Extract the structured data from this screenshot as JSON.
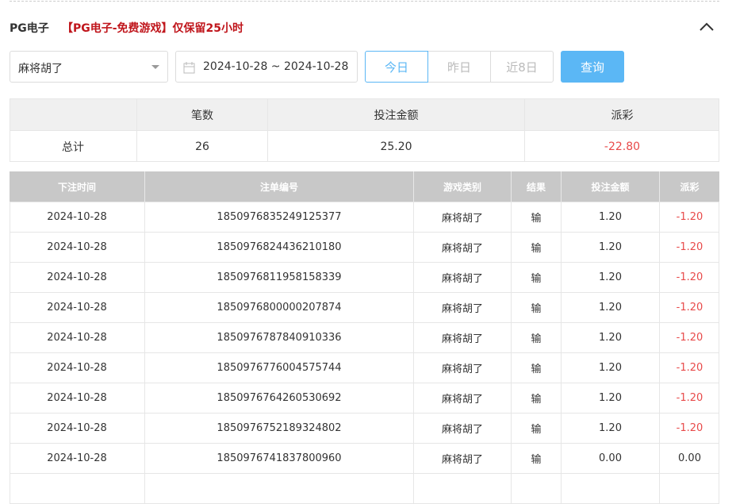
{
  "header": {
    "title": "PG电子",
    "notice": "【PG电子-免费游戏】仅保留25小时"
  },
  "filters": {
    "game": "麻将胡了",
    "date_range": "2024-10-28 ~ 2024-10-28",
    "quick_buttons": [
      "今日",
      "昨日",
      "近8日"
    ],
    "query_button": "查询"
  },
  "summary": {
    "columns": [
      "笔数",
      "投注金额",
      "派彩"
    ],
    "row_label": "总计",
    "values": [
      "26",
      "25.20",
      "-22.80"
    ]
  },
  "table": {
    "columns": [
      "下注时间",
      "注单编号",
      "游戏类别",
      "结果",
      "投注金额",
      "派彩"
    ],
    "rows": [
      [
        "2024-10-28",
        "1850976835249125377",
        "麻将胡了",
        "输",
        "1.20",
        "-1.20"
      ],
      [
        "2024-10-28",
        "1850976824436210180",
        "麻将胡了",
        "输",
        "1.20",
        "-1.20"
      ],
      [
        "2024-10-28",
        "1850976811958158339",
        "麻将胡了",
        "输",
        "1.20",
        "-1.20"
      ],
      [
        "2024-10-28",
        "1850976800000207874",
        "麻将胡了",
        "输",
        "1.20",
        "-1.20"
      ],
      [
        "2024-10-28",
        "1850976787840910336",
        "麻将胡了",
        "输",
        "1.20",
        "-1.20"
      ],
      [
        "2024-10-28",
        "1850976776004575744",
        "麻将胡了",
        "输",
        "1.20",
        "-1.20"
      ],
      [
        "2024-10-28",
        "1850976764260530692",
        "麻将胡了",
        "输",
        "1.20",
        "-1.20"
      ],
      [
        "2024-10-28",
        "1850976752189324802",
        "麻将胡了",
        "输",
        "1.20",
        "-1.20"
      ],
      [
        "2024-10-28",
        "1850976741837800960",
        "麻将胡了",
        "输",
        "0.00",
        "0.00"
      ]
    ]
  }
}
